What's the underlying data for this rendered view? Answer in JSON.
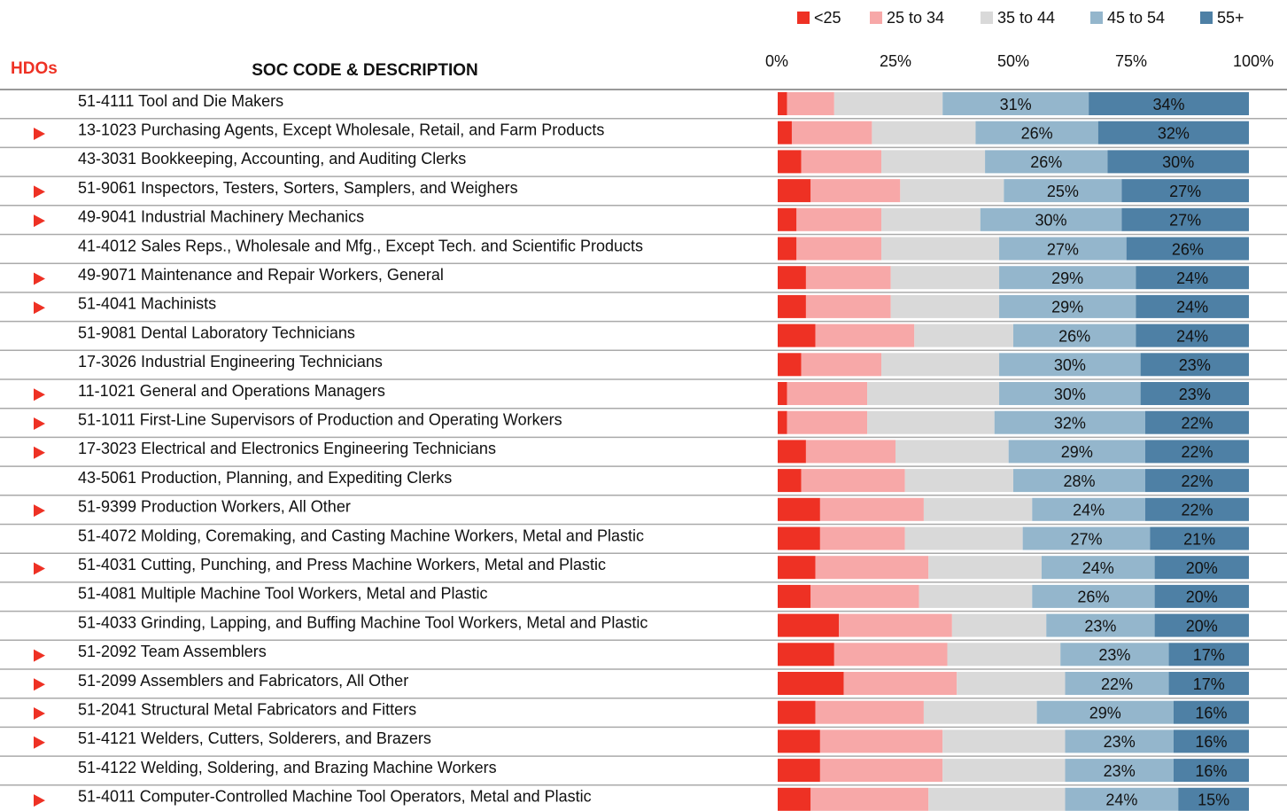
{
  "chart_data": {
    "type": "bar",
    "orientation": "horizontal",
    "stacked": true,
    "header_left": "HDOs",
    "header_center": "SOC CODE & DESCRIPTION",
    "categories": [
      "51-4111 Tool and Die Makers",
      "13-1023 Purchasing Agents, Except Wholesale, Retail, and Farm Products",
      "43-3031 Bookkeeping, Accounting, and Auditing Clerks",
      "51-9061 Inspectors, Testers, Sorters, Samplers, and Weighers",
      "49-9041 Industrial Machinery Mechanics",
      "41-4012 Sales Reps., Wholesale and Mfg., Except Tech. and Scientific Products",
      "49-9071 Maintenance and Repair Workers, General",
      "51-4041 Machinists",
      "51-9081 Dental Laboratory Technicians",
      "17-3026 Industrial Engineering Technicians",
      "11-1021 General and Operations Managers",
      "51-1011 First-Line Supervisors of Production and Operating Workers",
      "17-3023 Electrical and Electronics Engineering Technicians",
      "43-5061 Production, Planning, and Expediting Clerks",
      "51-9399 Production Workers, All Other",
      "51-4072 Molding, Coremaking, and Casting Machine Workers, Metal and Plastic",
      "51-4031 Cutting, Punching, and Press Machine Workers, Metal and Plastic",
      "51-4081 Multiple Machine Tool Workers, Metal and Plastic",
      "51-4033 Grinding, Lapping, and Buffing Machine Tool Workers, Metal and Plastic",
      "51-2092 Team Assemblers",
      "51-2099 Assemblers and Fabricators, All Other",
      "51-2041 Structural Metal Fabricators and Fitters",
      "51-4121 Welders, Cutters, Solderers, and Brazers",
      "51-4122 Welding, Soldering, and Brazing Machine Workers",
      "51-4011 Computer-Controlled Machine Tool Operators, Metal and Plastic"
    ],
    "hdo": [
      false,
      true,
      false,
      true,
      true,
      false,
      true,
      true,
      false,
      false,
      true,
      true,
      true,
      false,
      true,
      false,
      true,
      false,
      false,
      true,
      true,
      true,
      true,
      false,
      true
    ],
    "hdo_color": "#ee3124",
    "series": [
      {
        "name": "<25",
        "color": "#ee3124",
        "values": [
          2,
          3,
          5,
          7,
          4,
          4,
          6,
          6,
          8,
          5,
          2,
          2,
          6,
          5,
          9,
          9,
          8,
          7,
          13,
          12,
          14,
          8,
          9,
          9,
          7
        ]
      },
      {
        "name": "25 to 34",
        "color": "#f7a8a8",
        "values": [
          10,
          17,
          17,
          19,
          18,
          18,
          18,
          18,
          21,
          17,
          17,
          17,
          19,
          22,
          22,
          18,
          24,
          23,
          24,
          24,
          24,
          23,
          26,
          26,
          25
        ]
      },
      {
        "name": "35 to 44",
        "color": "#d9d9d9",
        "values": [
          23,
          22,
          22,
          22,
          21,
          25,
          23,
          23,
          21,
          25,
          28,
          27,
          24,
          23,
          23,
          25,
          24,
          24,
          20,
          24,
          23,
          24,
          26,
          26,
          29
        ]
      },
      {
        "name": "45 to 54",
        "color": "#94b6cc",
        "values": [
          31,
          26,
          26,
          25,
          30,
          27,
          29,
          29,
          26,
          30,
          30,
          32,
          29,
          28,
          24,
          27,
          24,
          26,
          23,
          23,
          22,
          29,
          23,
          23,
          24
        ],
        "value_labels": [
          "31%",
          "26%",
          "26%",
          "25%",
          "30%",
          "27%",
          "29%",
          "29%",
          "26%",
          "30%",
          "30%",
          "32%",
          "29%",
          "28%",
          "24%",
          "27%",
          "24%",
          "26%",
          "23%",
          "23%",
          "22%",
          "29%",
          "23%",
          "23%",
          "24%"
        ]
      },
      {
        "name": "55+",
        "color": "#4e80a5",
        "values": [
          34,
          32,
          30,
          27,
          27,
          26,
          24,
          24,
          24,
          23,
          23,
          22,
          22,
          22,
          22,
          21,
          20,
          20,
          20,
          17,
          17,
          16,
          16,
          16,
          15
        ],
        "value_labels": [
          "34%",
          "32%",
          "30%",
          "27%",
          "27%",
          "26%",
          "24%",
          "24%",
          "24%",
          "23%",
          "23%",
          "22%",
          "22%",
          "22%",
          "22%",
          "21%",
          "20%",
          "20%",
          "20%",
          "17%",
          "17%",
          "16%",
          "16%",
          "16%",
          "15%"
        ]
      }
    ],
    "xlim": [
      0,
      100
    ],
    "xticks": [
      {
        "value": 0,
        "label": "0%"
      },
      {
        "value": 25,
        "label": "25%"
      },
      {
        "value": 50,
        "label": "50%"
      },
      {
        "value": 75,
        "label": "75%"
      },
      {
        "value": 100,
        "label": "100%"
      }
    ],
    "legend": "top-right"
  }
}
